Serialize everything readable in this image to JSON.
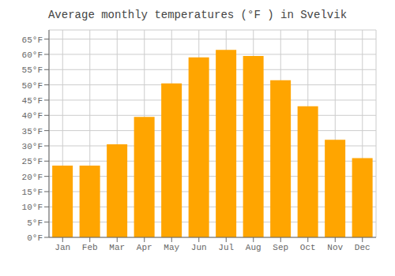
{
  "chart_data": {
    "type": "bar",
    "title": "Average monthly temperatures (°F ) in Svelvik",
    "categories": [
      "Jan",
      "Feb",
      "Mar",
      "Apr",
      "May",
      "Jun",
      "Jul",
      "Aug",
      "Sep",
      "Oct",
      "Nov",
      "Dec"
    ],
    "values": [
      23.5,
      23.5,
      30.5,
      39.5,
      50.5,
      59.0,
      61.5,
      59.5,
      51.5,
      43.0,
      32.0,
      26.0
    ],
    "color": "#FFA500",
    "ylim": [
      0,
      68
    ],
    "yticks": [
      {
        "value": 0,
        "label": "0°F"
      },
      {
        "value": 5,
        "label": "5°F"
      },
      {
        "value": 10,
        "label": "10°F"
      },
      {
        "value": 15,
        "label": "15°F"
      },
      {
        "value": 20,
        "label": "20°F"
      },
      {
        "value": 25,
        "label": "25°F"
      },
      {
        "value": 30,
        "label": "30°F"
      },
      {
        "value": 35,
        "label": "35°F"
      },
      {
        "value": 40,
        "label": "40°F"
      },
      {
        "value": 45,
        "label": "45°F"
      },
      {
        "value": 50,
        "label": "50°F"
      },
      {
        "value": 55,
        "label": "55°F"
      },
      {
        "value": 60,
        "label": "60°F"
      },
      {
        "value": 65,
        "label": "65°F"
      }
    ],
    "grid": true
  }
}
